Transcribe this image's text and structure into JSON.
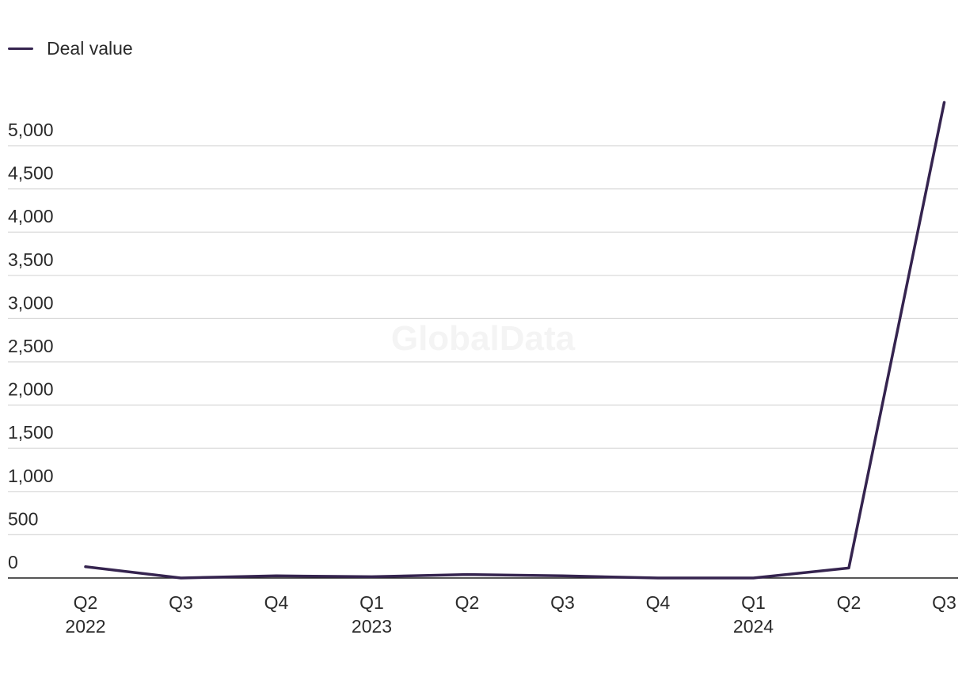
{
  "legend": {
    "label": "Deal value",
    "color": "#35244f"
  },
  "watermark": "GlobalData",
  "chart_data": {
    "type": "line",
    "categories": [
      "Q2 2022",
      "Q3 2022",
      "Q4 2022",
      "Q1 2023",
      "Q2 2023",
      "Q3 2023",
      "Q4 2023",
      "Q1 2024",
      "Q2 2024",
      "Q3 2024"
    ],
    "x_tick_labels": [
      {
        "quarter": "Q2",
        "year": "2022"
      },
      {
        "quarter": "Q3",
        "year": ""
      },
      {
        "quarter": "Q4",
        "year": ""
      },
      {
        "quarter": "Q1",
        "year": "2023"
      },
      {
        "quarter": "Q2",
        "year": ""
      },
      {
        "quarter": "Q3",
        "year": ""
      },
      {
        "quarter": "Q4",
        "year": ""
      },
      {
        "quarter": "Q1",
        "year": "2024"
      },
      {
        "quarter": "Q2",
        "year": ""
      },
      {
        "quarter": "Q3",
        "year": ""
      }
    ],
    "series": [
      {
        "name": "Deal value",
        "values": [
          130,
          0,
          25,
          15,
          40,
          25,
          0,
          0,
          115,
          5500
        ]
      }
    ],
    "yticks": [
      0,
      500,
      1000,
      1500,
      2000,
      2500,
      3000,
      3500,
      4000,
      4500,
      5000
    ],
    "ytick_labels": [
      "0",
      "500",
      "1,000",
      "1,500",
      "2,000",
      "2,500",
      "3,000",
      "3,500",
      "4,000",
      "4,500",
      "5,000"
    ],
    "ylim": [
      0,
      5000
    ],
    "grid": "horizontal",
    "legend_position": "top-left",
    "line_color": "#35244f"
  }
}
